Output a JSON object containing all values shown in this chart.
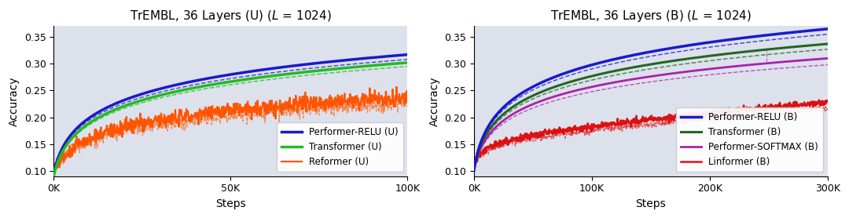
{
  "left_title": "TrEMBL, 36 Layers (U) ($\\itL$ = 1024)",
  "right_title": "TrEMBL, 36 Layers (B) ($\\itL$ = 1024)",
  "xlabel": "Steps",
  "ylabel": "Accuracy",
  "ylim": [
    0.09,
    0.37
  ],
  "left_xlim": [
    0,
    100000
  ],
  "right_xlim": [
    0,
    300000
  ],
  "left_xticks": [
    0,
    50000,
    100000
  ],
  "right_xticks": [
    0,
    100000,
    200000,
    300000
  ],
  "left_xticklabels": [
    "0K",
    "50K",
    "100K"
  ],
  "right_xticklabels": [
    "0K",
    "100K",
    "200K",
    "300K"
  ],
  "yticks": [
    0.1,
    0.15,
    0.2,
    0.25,
    0.3,
    0.35
  ],
  "bg_color": "#dde1ec",
  "left_legend": [
    "Performer-RELU (U)",
    "Transformer (U)",
    "Reformer (U)"
  ],
  "right_legend": [
    "Performer-RELU (B)",
    "Performer-SOFTMAX (B)",
    "Transformer (B)",
    "Linformer (B)"
  ],
  "left_colors": [
    "#1a1acc",
    "#22bb22",
    "#ff5500"
  ],
  "right_colors": [
    "#1a1acc",
    "#aa22aa",
    "#226622",
    "#dd1111"
  ]
}
